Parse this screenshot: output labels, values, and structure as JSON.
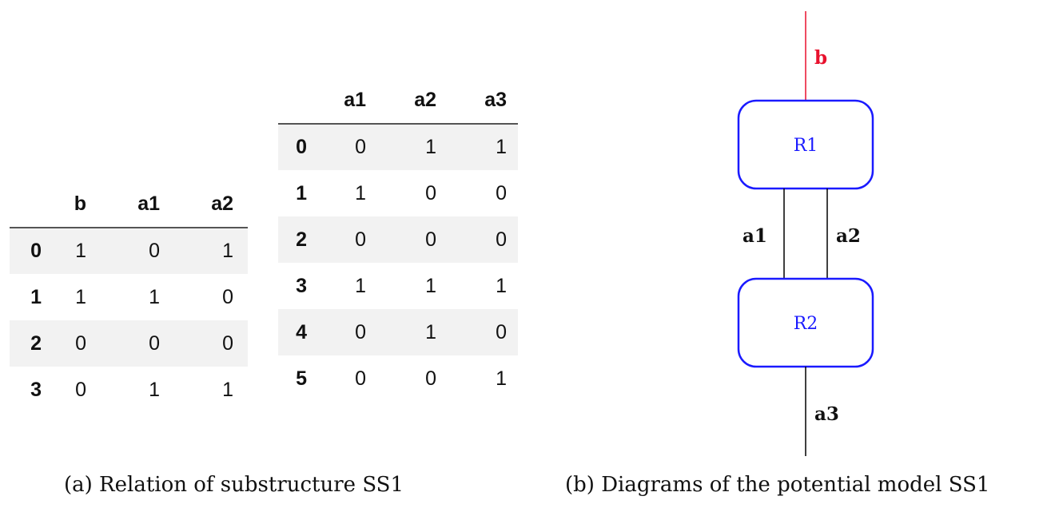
{
  "table_a": {
    "columns": [
      "b",
      "a1",
      "a2"
    ],
    "rows": [
      {
        "index": "0",
        "cells": [
          "1",
          "0",
          "1"
        ]
      },
      {
        "index": "1",
        "cells": [
          "1",
          "1",
          "0"
        ]
      },
      {
        "index": "2",
        "cells": [
          "0",
          "0",
          "0"
        ]
      },
      {
        "index": "3",
        "cells": [
          "0",
          "1",
          "1"
        ]
      }
    ]
  },
  "table_b": {
    "columns": [
      "a1",
      "a2",
      "a3"
    ],
    "rows": [
      {
        "index": "0",
        "cells": [
          "0",
          "1",
          "1"
        ]
      },
      {
        "index": "1",
        "cells": [
          "1",
          "0",
          "0"
        ]
      },
      {
        "index": "2",
        "cells": [
          "0",
          "0",
          "0"
        ]
      },
      {
        "index": "3",
        "cells": [
          "1",
          "1",
          "1"
        ]
      },
      {
        "index": "4",
        "cells": [
          "0",
          "1",
          "0"
        ]
      },
      {
        "index": "5",
        "cells": [
          "0",
          "0",
          "1"
        ]
      }
    ]
  },
  "diagram": {
    "nodes": {
      "r1": "R1",
      "r2": "R2"
    },
    "edges": {
      "b": "b",
      "a1": "a1",
      "a2": "a2",
      "a3": "a3"
    },
    "colors": {
      "node_border": "#1a1aff",
      "node_text": "#1a1aff",
      "edge_b": "#e8112d",
      "edge": "#000000"
    }
  },
  "captions": {
    "a": "(a) Relation of substructure SS1",
    "b": "(b) Diagrams of the potential model SS1"
  }
}
